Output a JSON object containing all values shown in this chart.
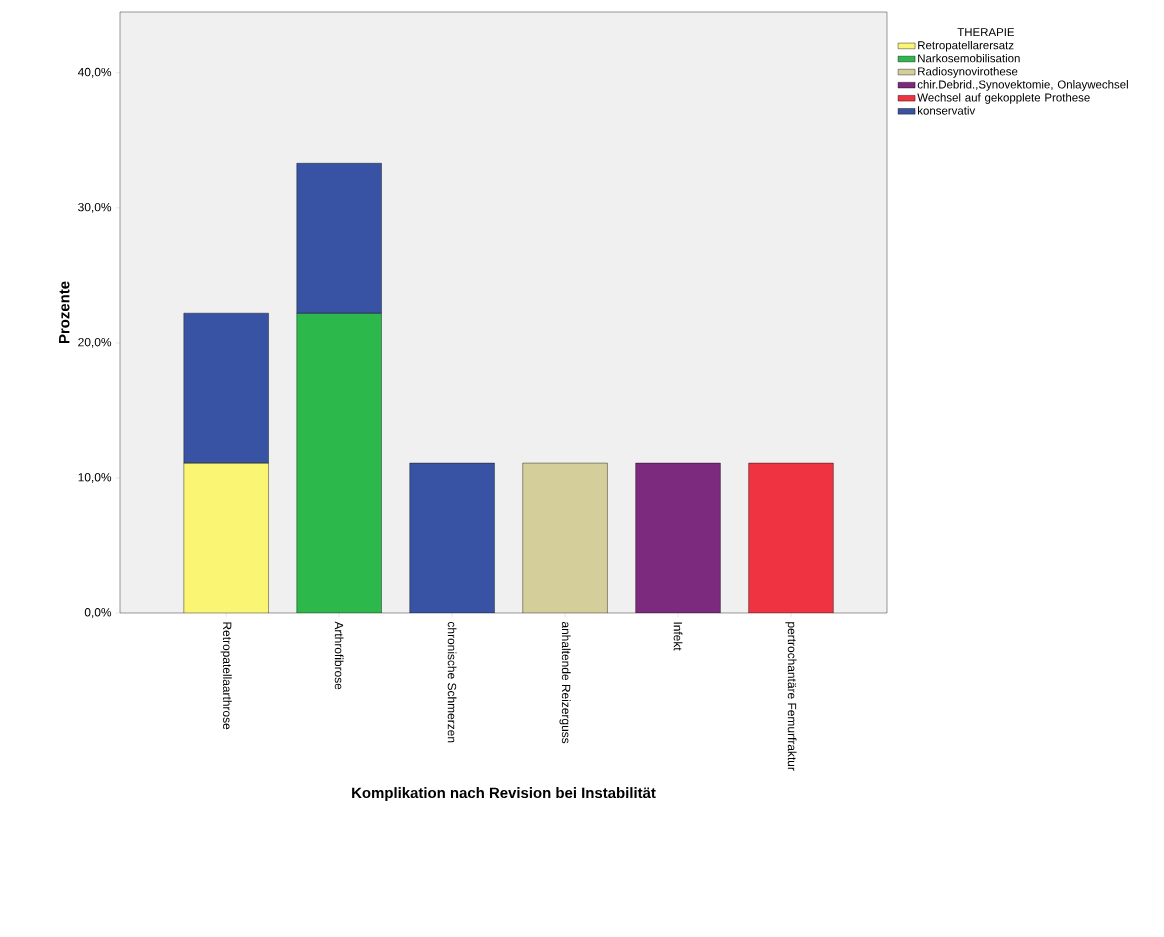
{
  "chart_data": {
    "type": "bar",
    "stacked": true,
    "xlabel": "Komplikation nach Revision bei Instabilität",
    "ylabel": "Prozente",
    "legend_title": "THERAPIE",
    "legend": "top right",
    "categories": [
      "Retropatellaarthrose",
      "Arthrofibrose",
      "chronische Schmerzen",
      "anhaltende Reizerguss",
      "Infekt",
      "pertrochantäre Femurfraktur"
    ],
    "ylim": [
      0,
      44.5
    ],
    "yticks": [
      {
        "value": 0,
        "label": "0,0%"
      },
      {
        "value": 10,
        "label": "10,0%"
      },
      {
        "value": 20,
        "label": "20,0%"
      },
      {
        "value": 30,
        "label": "30,0%"
      },
      {
        "value": 40,
        "label": "40,0%"
      }
    ],
    "series": [
      {
        "name": "Retropatellarersatz",
        "color": "#faf573",
        "values": [
          11.1,
          null,
          null,
          null,
          null,
          null
        ]
      },
      {
        "name": "Narkosemobilisation",
        "color": "#2db84b",
        "values": [
          null,
          22.2,
          null,
          null,
          null,
          null
        ]
      },
      {
        "name": "Radiosynovirothese",
        "color": "#d4ce9a",
        "values": [
          null,
          null,
          null,
          11.1,
          null,
          null
        ]
      },
      {
        "name": "chir.Debrid.,Synovektomie, Onlaywechsel",
        "color": "#7b2a7e",
        "values": [
          null,
          null,
          null,
          null,
          11.1,
          null
        ]
      },
      {
        "name": "Wechsel auf gekopplete Prothese",
        "color": "#ef3340",
        "values": [
          null,
          null,
          null,
          null,
          null,
          11.1
        ]
      },
      {
        "name": "konservativ",
        "color": "#3953a4",
        "values": [
          11.1,
          11.1,
          11.1,
          null,
          null,
          null
        ]
      }
    ]
  }
}
